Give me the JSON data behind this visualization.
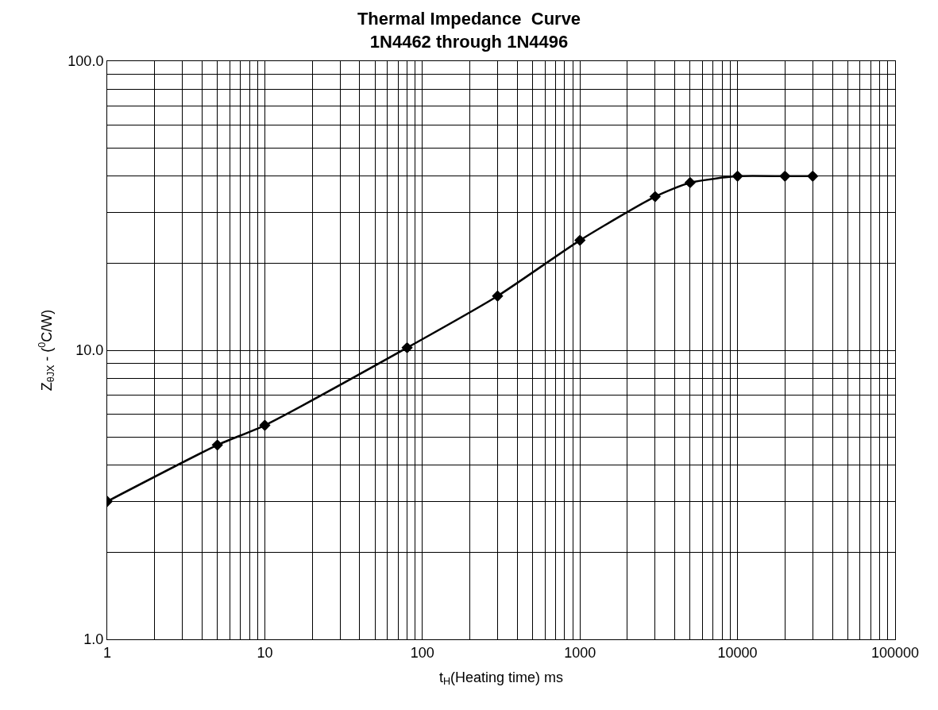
{
  "chart_data": {
    "type": "line",
    "title": "Thermal Impedance  Curve\n1N4462 through 1N4496",
    "xlabel": "t$_{H}$(Heating time) ms",
    "ylabel": "Z$_{θJX}$ - ($^{0}$C/W)",
    "x": [
      1,
      5,
      10,
      80,
      300,
      1000,
      3000,
      5000,
      10000,
      20000,
      30000
    ],
    "series": [
      {
        "color": "#000000",
        "values": [
          3.0,
          4.7,
          5.5,
          10.2,
          15.4,
          24,
          34,
          38,
          40,
          40,
          40
        ]
      }
    ],
    "log": "xy",
    "xlim": [
      1,
      100000
    ],
    "ylim": [
      1,
      100
    ],
    "xticks": [
      1,
      10,
      100,
      1000,
      10000,
      100000
    ],
    "yticks": [
      {
        "value": 1,
        "label": "1.0"
      },
      {
        "value": 10,
        "label": "10.0"
      },
      {
        "value": 100,
        "label": "100.0"
      }
    ],
    "grid": true,
    "marker": "diamond",
    "line_style": "solid"
  }
}
